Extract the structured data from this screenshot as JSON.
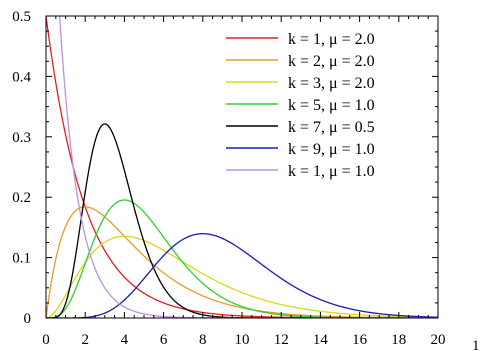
{
  "chart_data": {
    "type": "line",
    "title": "",
    "xlabel": "",
    "ylabel": "",
    "xlim": [
      0,
      20
    ],
    "ylim": [
      0,
      0.5
    ],
    "x_ticks": [
      "0",
      "2",
      "4",
      "6",
      "8",
      "10",
      "12",
      "14",
      "16",
      "18",
      "20"
    ],
    "y_ticks": [
      "0",
      "0.1",
      "0.2",
      "0.3",
      "0.4",
      "0.5"
    ],
    "extra_tick_label": "1",
    "grid": false,
    "legend_position": "top-right",
    "series": [
      {
        "name": "k = 1, μ = 2.0",
        "k": 1,
        "mu": 2.0,
        "color": "#e02020"
      },
      {
        "name": "k = 2, μ = 2.0",
        "k": 2,
        "mu": 2.0,
        "color": "#e89a30"
      },
      {
        "name": "k = 3, μ = 2.0",
        "k": 3,
        "mu": 2.0,
        "color": "#d8d820"
      },
      {
        "name": "k = 5, μ = 1.0",
        "k": 5,
        "mu": 1.0,
        "color": "#30d030"
      },
      {
        "name": "k = 7, μ = 0.5",
        "k": 7,
        "mu": 0.5,
        "color": "#000000"
      },
      {
        "name": "k = 9, μ = 1.0",
        "k": 9,
        "mu": 1.0,
        "color": "#1a1ab8"
      },
      {
        "name": "k = 1, μ = 1.0",
        "k": 1,
        "mu": 1.0,
        "color": "#c090e0"
      }
    ]
  }
}
